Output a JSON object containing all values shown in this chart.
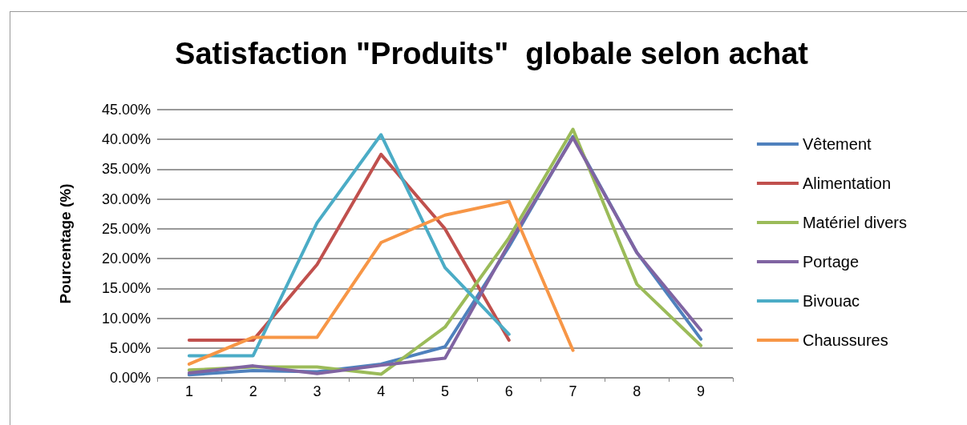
{
  "chart_data": {
    "type": "line",
    "title": "Satisfaction \"Produits\"  globale selon achat",
    "ylabel": "Pourcentage (%)",
    "categories": [
      "1",
      "2",
      "3",
      "4",
      "5",
      "6",
      "7",
      "8",
      "9"
    ],
    "series": [
      {
        "name": "Vêtement",
        "color": "#4f81bd",
        "values": [
          0.5,
          1.2,
          1.0,
          2.3,
          5.2,
          22,
          40.5,
          21,
          6.5
        ]
      },
      {
        "name": "Alimentation",
        "color": "#c0504d",
        "values": [
          6.3,
          6.3,
          19,
          37.5,
          25,
          6.3,
          null,
          null,
          null
        ]
      },
      {
        "name": "Matériel divers",
        "color": "#9bbb59",
        "values": [
          1.3,
          1.8,
          1.8,
          0.6,
          8.5,
          23.5,
          41.7,
          15.7,
          5.4
        ]
      },
      {
        "name": "Portage",
        "color": "#8064a2",
        "values": [
          0.8,
          2.0,
          0.7,
          2.1,
          3.3,
          22.5,
          40.3,
          21,
          8
        ]
      },
      {
        "name": "Bivouac",
        "color": "#4bacc6",
        "values": [
          3.7,
          3.7,
          26,
          40.8,
          18.5,
          7.3,
          null,
          null,
          null
        ]
      },
      {
        "name": "Chaussures",
        "color": "#f79646",
        "values": [
          2.3,
          6.8,
          6.8,
          22.7,
          27.3,
          29.6,
          4.6,
          null,
          null
        ]
      }
    ],
    "ylim": [
      0,
      45
    ],
    "yticks": [
      {
        "value": 0,
        "label": "0.00%"
      },
      {
        "value": 5,
        "label": "5.00%"
      },
      {
        "value": 10,
        "label": "10.00%"
      },
      {
        "value": 15,
        "label": "15.00%"
      },
      {
        "value": 20,
        "label": "20.00%"
      },
      {
        "value": 25,
        "label": "25.00%"
      },
      {
        "value": 30,
        "label": "30.00%"
      },
      {
        "value": 35,
        "label": "35.00%"
      },
      {
        "value": 40,
        "label": "40.00%"
      },
      {
        "value": 45,
        "label": "45.00%"
      }
    ],
    "grid": "y",
    "legend": "right",
    "marker": "none",
    "line_style": "solid"
  }
}
